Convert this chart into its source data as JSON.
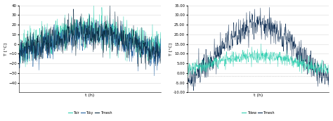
{
  "left": {
    "xlabel": "t (h)",
    "ylabel": "T [°C]",
    "ylim": [
      -50,
      40
    ],
    "yticks": [
      -40,
      -30,
      -20,
      -10,
      0,
      10,
      20,
      30,
      40
    ],
    "legend": [
      "Tair",
      "Tsky",
      "Tmesh"
    ],
    "colors": [
      "#2ecfb0",
      "#2060a0",
      "#0a2a40"
    ]
  },
  "right": {
    "xlabel": "t (h)",
    "ylabel": "T [°C]",
    "ylim": [
      -10,
      35
    ],
    "yticks": [
      -10.0,
      -5.0,
      0.0,
      5.0,
      10.0,
      15.0,
      20.0,
      25.0,
      30.0,
      35.0
    ],
    "legend": [
      "Tdew",
      "Tmesh"
    ],
    "colors": [
      "#2ecfb0",
      "#0a2a50"
    ],
    "dotted_val": -1.5
  },
  "n_points": 600,
  "seed": 7
}
